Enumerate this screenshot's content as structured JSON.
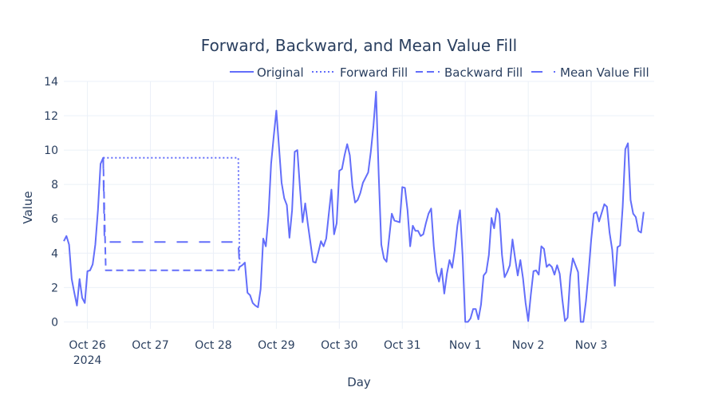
{
  "chart_data": {
    "type": "line",
    "title": "Forward, Backward, and Mean Value Fill",
    "xlabel": "Day",
    "ylabel": "Value",
    "x_unit": "hours after 2024-10-26 00:00",
    "xlim": [
      -9,
      216
    ],
    "ylim": [
      -0.4,
      14
    ],
    "yticks": [
      0,
      2,
      4,
      6,
      8,
      10,
      12,
      14
    ],
    "xticks": [
      {
        "x": 0,
        "label": "Oct 26",
        "sublabel": "2024"
      },
      {
        "x": 24,
        "label": "Oct 27"
      },
      {
        "x": 48,
        "label": "Oct 28"
      },
      {
        "x": 72,
        "label": "Oct 29"
      },
      {
        "x": 96,
        "label": "Oct 30"
      },
      {
        "x": 120,
        "label": "Oct 31"
      },
      {
        "x": 144,
        "label": "Nov 1"
      },
      {
        "x": 168,
        "label": "Nov 2"
      },
      {
        "x": 192,
        "label": "Nov 3"
      }
    ],
    "legend": {
      "placement": "top-right",
      "orientation": "horizontal"
    },
    "line_color": "#636efa",
    "grid": true,
    "series": [
      {
        "name": "Original",
        "dash": "solid",
        "points": [
          [
            -9,
            4.7
          ],
          [
            -8,
            5.0
          ],
          [
            -7,
            4.5
          ],
          [
            -6,
            2.5
          ],
          [
            -5,
            1.7
          ],
          [
            -4,
            0.95
          ],
          [
            -3,
            2.5
          ],
          [
            -2,
            1.4
          ],
          [
            -1,
            1.1
          ],
          [
            0,
            2.95
          ],
          [
            1,
            3.0
          ],
          [
            2,
            3.35
          ],
          [
            3,
            4.5
          ],
          [
            4,
            6.5
          ],
          [
            5,
            9.2
          ],
          [
            6,
            9.55
          ],
          [
            6.5,
            9.55
          ]
        ]
      },
      {
        "name": "Original",
        "dash": "solid",
        "points": [
          [
            57.5,
            3.0
          ],
          [
            58,
            3.2
          ],
          [
            59,
            3.3
          ],
          [
            60,
            3.45
          ],
          [
            61,
            1.7
          ],
          [
            62,
            1.55
          ],
          [
            63,
            1.1
          ],
          [
            64,
            0.95
          ],
          [
            65,
            0.85
          ],
          [
            66,
            1.9
          ],
          [
            67,
            4.85
          ],
          [
            68,
            4.4
          ],
          [
            69,
            6.2
          ],
          [
            70,
            9.2
          ],
          [
            71,
            10.8
          ],
          [
            72,
            12.3
          ],
          [
            73,
            10.2
          ],
          [
            74,
            8.1
          ],
          [
            75,
            7.2
          ],
          [
            76,
            6.8
          ],
          [
            77,
            4.9
          ],
          [
            78,
            6.5
          ],
          [
            79,
            9.9
          ],
          [
            80,
            10.0
          ],
          [
            81,
            7.8
          ],
          [
            82,
            5.8
          ],
          [
            83,
            6.9
          ],
          [
            84,
            5.7
          ],
          [
            85,
            4.6
          ],
          [
            86,
            3.5
          ],
          [
            87,
            3.45
          ],
          [
            88,
            4.05
          ],
          [
            89,
            4.7
          ],
          [
            90,
            4.4
          ],
          [
            91,
            4.85
          ],
          [
            92,
            6.3
          ],
          [
            93,
            7.7
          ],
          [
            94,
            5.1
          ],
          [
            95,
            5.75
          ],
          [
            96,
            8.8
          ],
          [
            97,
            8.9
          ],
          [
            98,
            9.7
          ],
          [
            99,
            10.35
          ],
          [
            100,
            9.7
          ],
          [
            101,
            7.9
          ],
          [
            102,
            6.95
          ],
          [
            103,
            7.1
          ],
          [
            104,
            7.5
          ],
          [
            105,
            8.1
          ],
          [
            106,
            8.4
          ],
          [
            107,
            8.7
          ],
          [
            108,
            9.9
          ],
          [
            109,
            11.4
          ],
          [
            110,
            13.4
          ],
          [
            111,
            8.6
          ],
          [
            112,
            4.5
          ],
          [
            113,
            3.7
          ],
          [
            114,
            3.5
          ],
          [
            115,
            4.9
          ],
          [
            116,
            6.3
          ],
          [
            117,
            5.9
          ],
          [
            118,
            5.85
          ],
          [
            119,
            5.8
          ],
          [
            120,
            7.85
          ],
          [
            121,
            7.8
          ],
          [
            122,
            6.5
          ],
          [
            123,
            4.4
          ],
          [
            124,
            5.6
          ],
          [
            125,
            5.3
          ],
          [
            126,
            5.3
          ],
          [
            127,
            5.0
          ],
          [
            128,
            5.1
          ],
          [
            129,
            5.75
          ],
          [
            130,
            6.3
          ],
          [
            131,
            6.6
          ],
          [
            132,
            4.4
          ],
          [
            133,
            2.9
          ],
          [
            134,
            2.35
          ],
          [
            135,
            3.1
          ],
          [
            136,
            1.65
          ],
          [
            137,
            2.8
          ],
          [
            138,
            3.6
          ],
          [
            139,
            3.15
          ],
          [
            140,
            4.2
          ],
          [
            141,
            5.6
          ],
          [
            142,
            6.5
          ],
          [
            143,
            3.8
          ],
          [
            144,
            0.0
          ],
          [
            145,
            0.0
          ],
          [
            146,
            0.2
          ],
          [
            147,
            0.75
          ],
          [
            148,
            0.75
          ],
          [
            149,
            0.15
          ],
          [
            150,
            1.0
          ],
          [
            151,
            2.7
          ],
          [
            152,
            2.9
          ],
          [
            153,
            3.9
          ],
          [
            154,
            6.05
          ],
          [
            155,
            5.45
          ],
          [
            156,
            6.6
          ],
          [
            157,
            6.3
          ],
          [
            158,
            3.9
          ],
          [
            159,
            2.6
          ],
          [
            160,
            2.9
          ],
          [
            161,
            3.3
          ],
          [
            162,
            4.8
          ],
          [
            163,
            3.7
          ],
          [
            164,
            2.7
          ],
          [
            165,
            3.6
          ],
          [
            166,
            2.55
          ],
          [
            167,
            1.1
          ],
          [
            168,
            0.05
          ],
          [
            169,
            1.6
          ],
          [
            170,
            2.95
          ],
          [
            171,
            3.0
          ],
          [
            172,
            2.75
          ],
          [
            173,
            4.4
          ],
          [
            174,
            4.25
          ],
          [
            175,
            3.2
          ],
          [
            176,
            3.35
          ],
          [
            177,
            3.2
          ],
          [
            178,
            2.75
          ],
          [
            179,
            3.3
          ],
          [
            180,
            2.8
          ],
          [
            181,
            1.3
          ],
          [
            182,
            0.05
          ],
          [
            183,
            0.25
          ],
          [
            184,
            2.65
          ],
          [
            185,
            3.7
          ],
          [
            186,
            3.3
          ],
          [
            187,
            2.9
          ],
          [
            188,
            0.0
          ],
          [
            189,
            0.0
          ],
          [
            190,
            1.2
          ],
          [
            191,
            2.9
          ],
          [
            192,
            4.8
          ],
          [
            193,
            6.3
          ],
          [
            194,
            6.4
          ],
          [
            195,
            5.85
          ],
          [
            196,
            6.35
          ],
          [
            197,
            6.85
          ],
          [
            198,
            6.7
          ],
          [
            199,
            5.2
          ],
          [
            200,
            4.2
          ],
          [
            201,
            2.1
          ],
          [
            202,
            4.35
          ],
          [
            203,
            4.45
          ],
          [
            204,
            6.7
          ],
          [
            205,
            10.05
          ],
          [
            206,
            10.4
          ],
          [
            207,
            7.1
          ],
          [
            208,
            6.3
          ],
          [
            209,
            6.1
          ],
          [
            210,
            5.3
          ],
          [
            211,
            5.2
          ],
          [
            212,
            6.4
          ]
        ]
      },
      {
        "name": "Forward Fill",
        "dash": "dot",
        "points": [
          [
            6,
            9.55
          ],
          [
            57.5,
            9.55
          ],
          [
            58,
            3.2
          ]
        ]
      },
      {
        "name": "Backward Fill",
        "dash": "dash",
        "points": [
          [
            6,
            9.55
          ],
          [
            7,
            3.0
          ],
          [
            57.5,
            3.0
          ]
        ]
      },
      {
        "name": "Mean Value Fill",
        "dash": "longdash",
        "points": [
          [
            6,
            9.55
          ],
          [
            6.5,
            4.65
          ],
          [
            57.5,
            4.65
          ],
          [
            58,
            3.2
          ]
        ]
      }
    ]
  }
}
